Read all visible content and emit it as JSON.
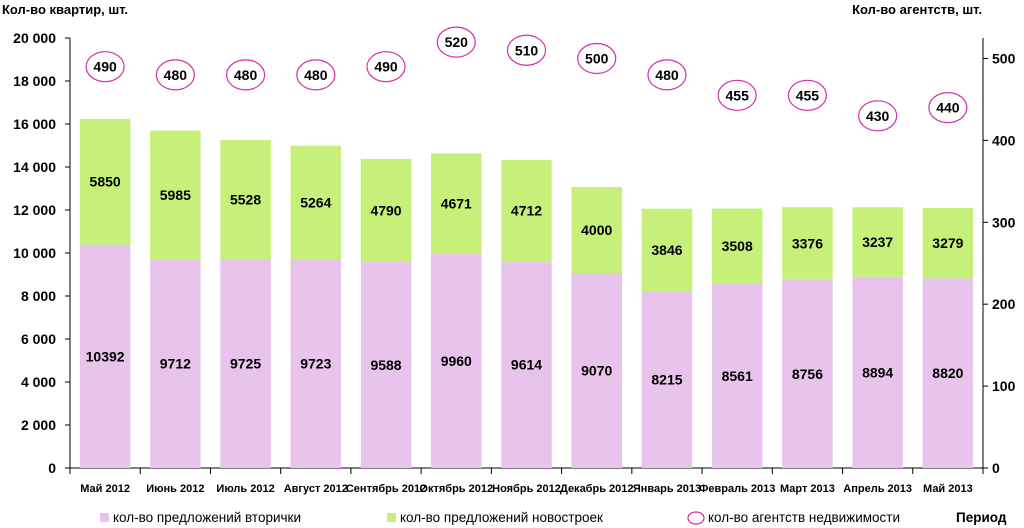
{
  "chart_data": {
    "type": "bar",
    "stacked": true,
    "left_axis_title": "Кол-во квартир, шт.",
    "right_axis_title": "Кол-во агентств,  шт.",
    "xlabel": "Период",
    "ylim_left": [
      0,
      20000
    ],
    "ylim_right": [
      0,
      525
    ],
    "left_ticks": [
      "0",
      "2 000",
      "4 000",
      "6 000",
      "8 000",
      "10 000",
      "12 000",
      "14 000",
      "16 000",
      "18 000",
      "20 000"
    ],
    "left_tick_values": [
      0,
      2000,
      4000,
      6000,
      8000,
      10000,
      12000,
      14000,
      16000,
      18000,
      20000
    ],
    "right_ticks": [
      "0",
      "100",
      "200",
      "300",
      "400",
      "500"
    ],
    "right_tick_values": [
      0,
      100,
      200,
      300,
      400,
      500
    ],
    "categories": [
      "Май 2012",
      "Июнь 2012",
      "Июль 2012",
      "Август 2012",
      "Сентябрь 2012",
      "Октябрь 2012",
      "Ноябрь 2012",
      "Декабрь 2012",
      "Январь 2013",
      "Февраль 2013",
      "Март 2013",
      "Апрель 2013",
      "Май 2013"
    ],
    "series": [
      {
        "name": "кол-во предложений вторички",
        "color": "#e8c4ec",
        "axis": "left",
        "values": [
          10392,
          9712,
          9725,
          9723,
          9588,
          9960,
          9614,
          9070,
          8215,
          8561,
          8756,
          8894,
          8820
        ]
      },
      {
        "name": "кол-во предложений новостроек",
        "color": "#c6f07a",
        "axis": "left",
        "values": [
          5850,
          5985,
          5528,
          5264,
          4790,
          4671,
          4712,
          4000,
          3846,
          3508,
          3376,
          3237,
          3279
        ]
      },
      {
        "name": "кол-во агентств недвижимости",
        "type": "marker",
        "marker_color": "#d62fa8",
        "axis": "right",
        "values": [
          490,
          480,
          480,
          480,
          490,
          520,
          510,
          500,
          480,
          455,
          455,
          430,
          440
        ]
      }
    ],
    "legend": "bottom"
  }
}
